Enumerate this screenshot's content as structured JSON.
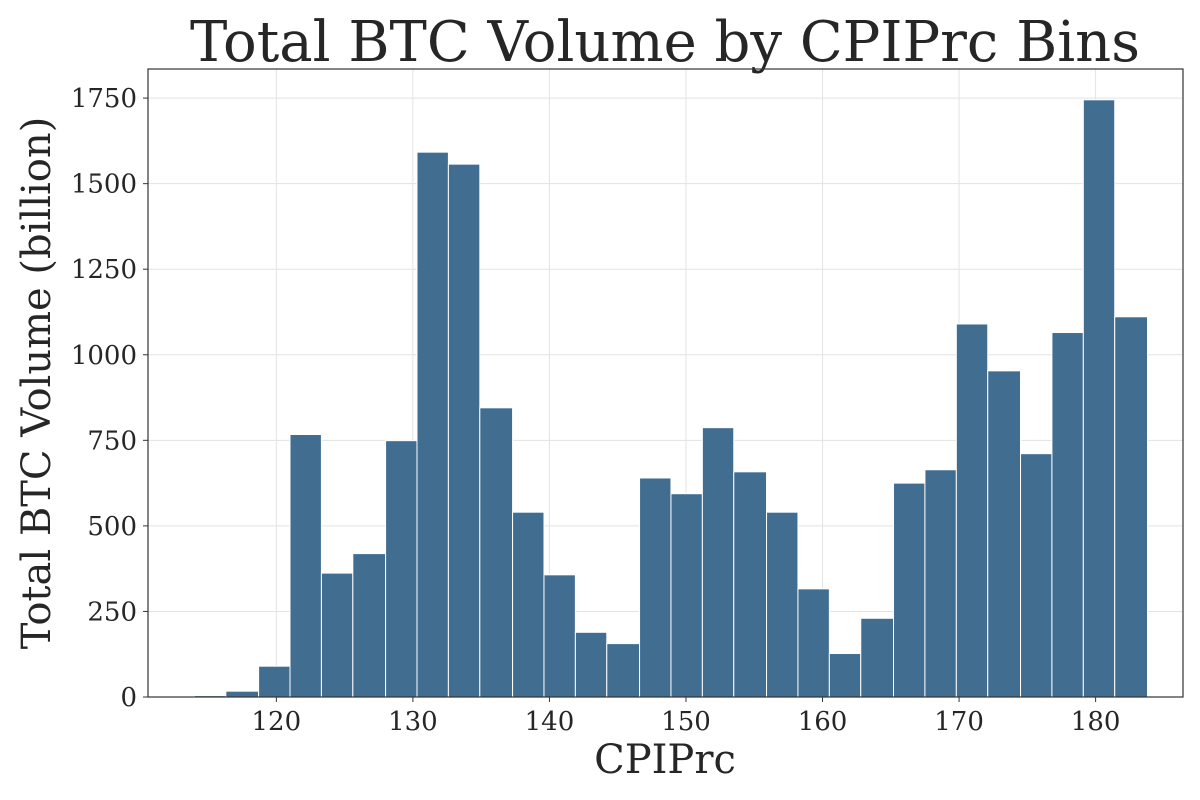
{
  "chart_data": {
    "type": "bar",
    "title": "Total BTC Volume by CPIPrc Bins",
    "xlabel": "CPIPrc",
    "ylabel": "Total BTC Volume (billion)",
    "xlim": [
      110.6,
      186.4
    ],
    "ylim": [
      0,
      1835
    ],
    "xticks": [
      120,
      130,
      140,
      150,
      160,
      170,
      180
    ],
    "yticks": [
      0,
      250,
      500,
      750,
      1000,
      1250,
      1500,
      1750
    ],
    "grid": true,
    "bar_color": "#3d6a8f",
    "bins": [
      {
        "x0": 114.0,
        "x1": 116.3,
        "value": 4
      },
      {
        "x0": 116.3,
        "x1": 118.7,
        "value": 17
      },
      {
        "x0": 118.7,
        "x1": 121.0,
        "value": 90
      },
      {
        "x0": 121.0,
        "x1": 123.3,
        "value": 767
      },
      {
        "x0": 123.3,
        "x1": 125.6,
        "value": 362
      },
      {
        "x0": 125.6,
        "x1": 128.0,
        "value": 419
      },
      {
        "x0": 128.0,
        "x1": 130.3,
        "value": 749
      },
      {
        "x0": 130.3,
        "x1": 132.6,
        "value": 1592
      },
      {
        "x0": 132.6,
        "x1": 134.9,
        "value": 1557
      },
      {
        "x0": 134.9,
        "x1": 137.3,
        "value": 845
      },
      {
        "x0": 137.3,
        "x1": 139.6,
        "value": 540
      },
      {
        "x0": 139.6,
        "x1": 141.9,
        "value": 357
      },
      {
        "x0": 141.9,
        "x1": 144.2,
        "value": 189
      },
      {
        "x0": 144.2,
        "x1": 146.6,
        "value": 156
      },
      {
        "x0": 146.6,
        "x1": 148.9,
        "value": 640
      },
      {
        "x0": 148.9,
        "x1": 151.2,
        "value": 594
      },
      {
        "x0": 151.2,
        "x1": 153.5,
        "value": 787
      },
      {
        "x0": 153.5,
        "x1": 155.9,
        "value": 658
      },
      {
        "x0": 155.9,
        "x1": 158.2,
        "value": 540
      },
      {
        "x0": 158.2,
        "x1": 160.5,
        "value": 316
      },
      {
        "x0": 160.5,
        "x1": 162.8,
        "value": 127
      },
      {
        "x0": 162.8,
        "x1": 165.2,
        "value": 230
      },
      {
        "x0": 165.2,
        "x1": 167.5,
        "value": 625
      },
      {
        "x0": 167.5,
        "x1": 169.8,
        "value": 664
      },
      {
        "x0": 169.8,
        "x1": 172.1,
        "value": 1090
      },
      {
        "x0": 172.1,
        "x1": 174.5,
        "value": 953
      },
      {
        "x0": 174.5,
        "x1": 176.8,
        "value": 711
      },
      {
        "x0": 176.8,
        "x1": 179.1,
        "value": 1065
      },
      {
        "x0": 179.1,
        "x1": 181.4,
        "value": 1745
      },
      {
        "x0": 181.4,
        "x1": 183.8,
        "value": 1111
      }
    ]
  }
}
